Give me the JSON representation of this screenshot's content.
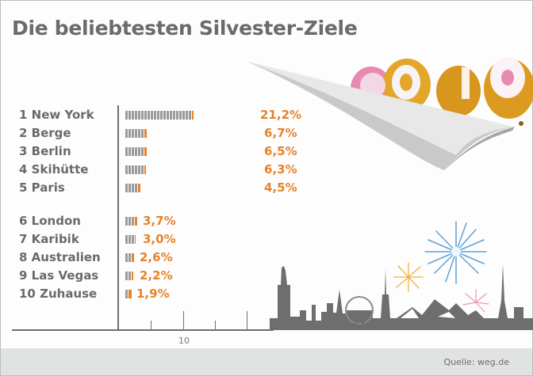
{
  "title": "Die beliebtesten Silvester-Ziele",
  "source": "Quelle: weg.de",
  "axis": {
    "tick_label": "10"
  },
  "decor": {
    "year": "2010",
    "icons": [
      "balloons-2010-icon",
      "page-peel-icon",
      "fireworks-icon",
      "skyline-icon"
    ]
  },
  "colors": {
    "bar": "#9a9a9a",
    "accent": "#e8822a",
    "text": "#6a6a6a",
    "footer": "#e1e2e2"
  },
  "rows": [
    {
      "label": "1 New York",
      "value": "21,2%"
    },
    {
      "label": "2 Berge",
      "value": "6,7%"
    },
    {
      "label": "3 Berlin",
      "value": "6,5%"
    },
    {
      "label": "4 Skihütte",
      "value": "6,3%"
    },
    {
      "label": "5 Paris",
      "value": "4,5%"
    },
    {
      "label": "6 London",
      "value": "3,7%"
    },
    {
      "label": "7 Karibik",
      "value": "3,0%"
    },
    {
      "label": "8 Australien",
      "value": "2,6%"
    },
    {
      "label": "9 Las Vegas",
      "value": "2,2%"
    },
    {
      "label": "10 Zuhause",
      "value": "1,9%"
    }
  ],
  "chart_data": {
    "type": "bar",
    "orientation": "horizontal",
    "title": "Die beliebtesten Silvester-Ziele",
    "categories": [
      "New York",
      "Berge",
      "Berlin",
      "Skihütte",
      "Paris",
      "London",
      "Karibik",
      "Australien",
      "Las Vegas",
      "Zuhause"
    ],
    "values": [
      21.2,
      6.7,
      6.5,
      6.3,
      4.5,
      3.7,
      3.0,
      2.6,
      2.2,
      1.9
    ],
    "unit": "%",
    "xlabel": "",
    "ylabel": "",
    "xticks": [
      {
        "value": 10,
        "label": "10"
      }
    ],
    "xlim": [
      0,
      23
    ],
    "grid": false,
    "legend": null,
    "source": "Quelle: weg.de"
  }
}
